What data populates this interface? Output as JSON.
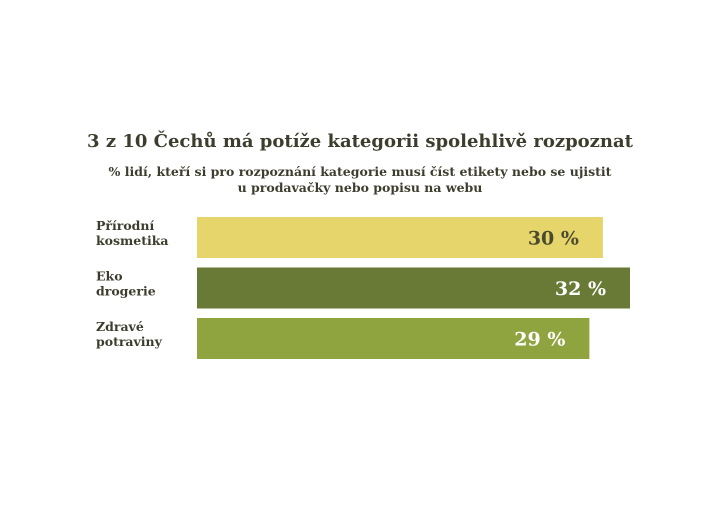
{
  "title": "3 z 10 Čechů má potíže kategorii spolehlivě rozpoznat",
  "subtitle": {
    "line1": "% lidí, kteří si pro rozpoznání kategorie musí číst etikety nebo se ujistit",
    "line2": "u prodavačky nebo popisu na webu"
  },
  "chart_data": {
    "type": "bar",
    "orientation": "horizontal",
    "categories": [
      [
        "Přírodní",
        "kosmetika"
      ],
      [
        "Eko",
        "drogerie"
      ],
      [
        "Zdravé",
        "potraviny"
      ]
    ],
    "values": [
      30,
      32,
      29
    ],
    "value_labels": [
      "30 %",
      "32 %",
      "29 %"
    ],
    "unit": "%",
    "colors": [
      "#e6d56b",
      "#687a36",
      "#8fa43e"
    ],
    "label_colors": [
      "#4a4a2c",
      "#ffffff",
      "#ffffff"
    ],
    "text_color": "#3d3d2e",
    "grid": false
  }
}
